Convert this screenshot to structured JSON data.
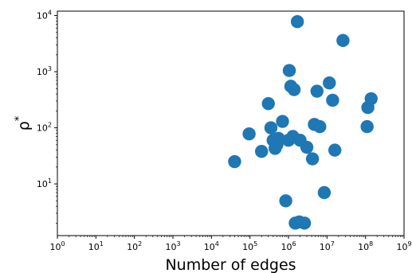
{
  "chart_data": {
    "type": "scatter",
    "xlabel": "Number of edges",
    "ylabel": "ρ",
    "ylabel_superscript": "*",
    "x_scale": "log",
    "y_scale": "log",
    "xlim": [
      1,
      1000000000
    ],
    "ylim": [
      1.2,
      12000
    ],
    "grid": false,
    "marker_color": "#1f77b4",
    "x_ticks": [
      {
        "value": 1,
        "base": "10",
        "exp": "0"
      },
      {
        "value": 10,
        "base": "10",
        "exp": "1"
      },
      {
        "value": 100,
        "base": "10",
        "exp": "2"
      },
      {
        "value": 1000,
        "base": "10",
        "exp": "3"
      },
      {
        "value": 10000,
        "base": "10",
        "exp": "4"
      },
      {
        "value": 100000,
        "base": "10",
        "exp": "5"
      },
      {
        "value": 1000000,
        "base": "10",
        "exp": "6"
      },
      {
        "value": 10000000,
        "base": "10",
        "exp": "7"
      },
      {
        "value": 100000000,
        "base": "10",
        "exp": "8"
      },
      {
        "value": 1000000000,
        "base": "10",
        "exp": "9"
      }
    ],
    "y_ticks": [
      {
        "value": 10,
        "base": "10",
        "exp": "1"
      },
      {
        "value": 100,
        "base": "10",
        "exp": "2"
      },
      {
        "value": 1000,
        "base": "10",
        "exp": "3"
      },
      {
        "value": 10000,
        "base": "10",
        "exp": "4"
      }
    ],
    "points": [
      {
        "x": 40000,
        "y": 25
      },
      {
        "x": 95000,
        "y": 78
      },
      {
        "x": 200000,
        "y": 38
      },
      {
        "x": 300000,
        "y": 270
      },
      {
        "x": 350000,
        "y": 100
      },
      {
        "x": 400000,
        "y": 60
      },
      {
        "x": 450000,
        "y": 43
      },
      {
        "x": 500000,
        "y": 50
      },
      {
        "x": 550000,
        "y": 65
      },
      {
        "x": 700000,
        "y": 130
      },
      {
        "x": 850000,
        "y": 5
      },
      {
        "x": 1000000,
        "y": 60
      },
      {
        "x": 1050000,
        "y": 1050
      },
      {
        "x": 1150000,
        "y": 550
      },
      {
        "x": 1300000,
        "y": 70
      },
      {
        "x": 1400000,
        "y": 480
      },
      {
        "x": 1500000,
        "y": 2
      },
      {
        "x": 1700000,
        "y": 7800
      },
      {
        "x": 1900000,
        "y": 2.1
      },
      {
        "x": 2000000,
        "y": 60
      },
      {
        "x": 2600000,
        "y": 2
      },
      {
        "x": 3000000,
        "y": 45
      },
      {
        "x": 4200000,
        "y": 28
      },
      {
        "x": 4700000,
        "y": 115
      },
      {
        "x": 5500000,
        "y": 450
      },
      {
        "x": 6500000,
        "y": 105
      },
      {
        "x": 8500000,
        "y": 7
      },
      {
        "x": 11500000,
        "y": 630
      },
      {
        "x": 14000000,
        "y": 310
      },
      {
        "x": 16000000,
        "y": 40
      },
      {
        "x": 26000000,
        "y": 3600
      },
      {
        "x": 110000000,
        "y": 105
      },
      {
        "x": 115000000,
        "y": 230
      },
      {
        "x": 140000000,
        "y": 330
      }
    ]
  }
}
